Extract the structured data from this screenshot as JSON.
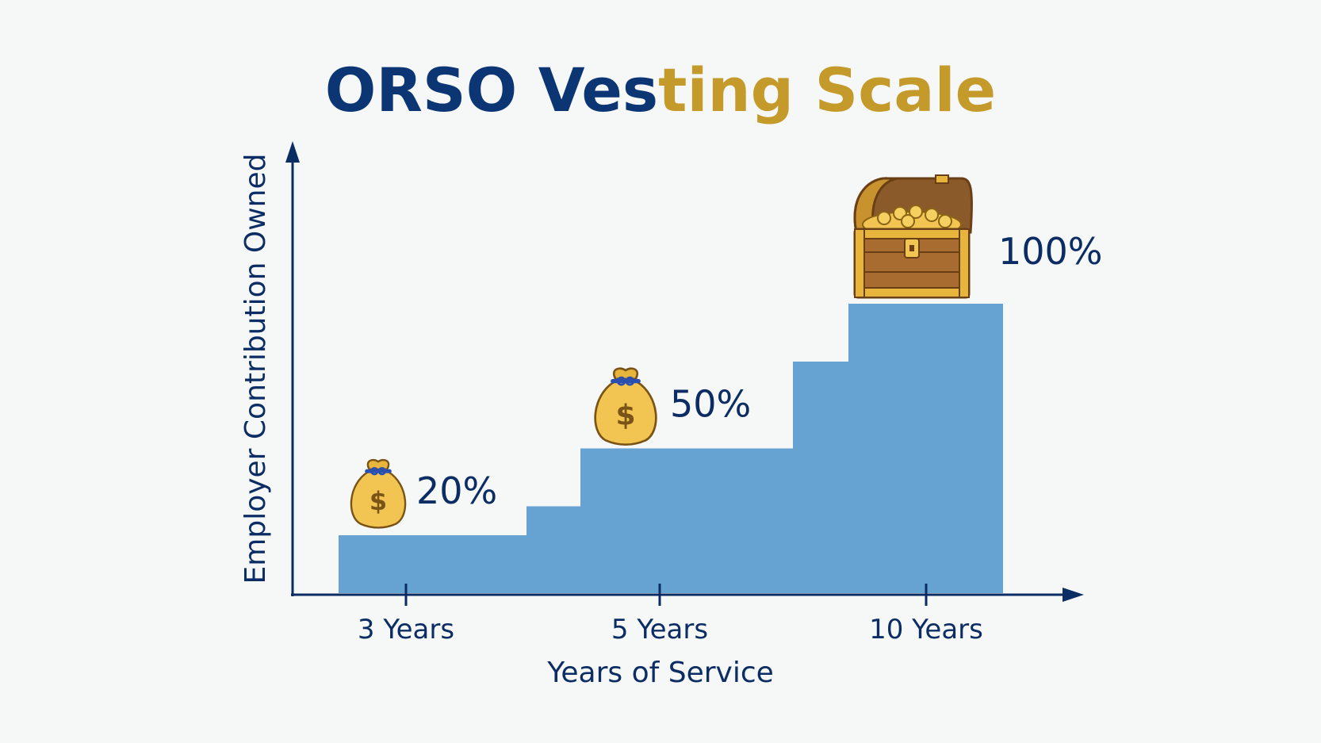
{
  "chart_data": {
    "type": "bar",
    "title": "ORSO Vesting Scale",
    "title_parts": [
      {
        "text": "ORSO Ves",
        "color": "#0c3574"
      },
      {
        "text": "ting Scale",
        "color": "#c49a2a"
      }
    ],
    "xlabel": "Years of Service",
    "ylabel": "Employer Contribution Owned",
    "categories": [
      "3 Years",
      "5 Years",
      "10 Years"
    ],
    "steps": [
      {
        "years": 3,
        "value": 20
      },
      {
        "years": 4,
        "value": 30
      },
      {
        "years": 5,
        "value": 50
      },
      {
        "years": 6,
        "value": 50
      },
      {
        "years": 7,
        "value": 50
      },
      {
        "years": 8,
        "value": 50
      },
      {
        "years": 9,
        "value": 80
      },
      {
        "years": 10,
        "value": 100
      }
    ],
    "data_labels": [
      {
        "text": "20%",
        "value": 20,
        "icon": "money-bag-icon"
      },
      {
        "text": "50%",
        "value": 50,
        "icon": "money-bag-icon"
      },
      {
        "text": "100%",
        "value": 100,
        "icon": "treasure-chest-icon"
      }
    ],
    "ylim": [
      0,
      100
    ],
    "colors": {
      "bar": "#66a3d2",
      "axis": "#0c2d63",
      "text": "#0c2d63",
      "gold": "#e8b53c",
      "background": "#f6f7f7"
    },
    "grid": false,
    "legend": "none"
  }
}
